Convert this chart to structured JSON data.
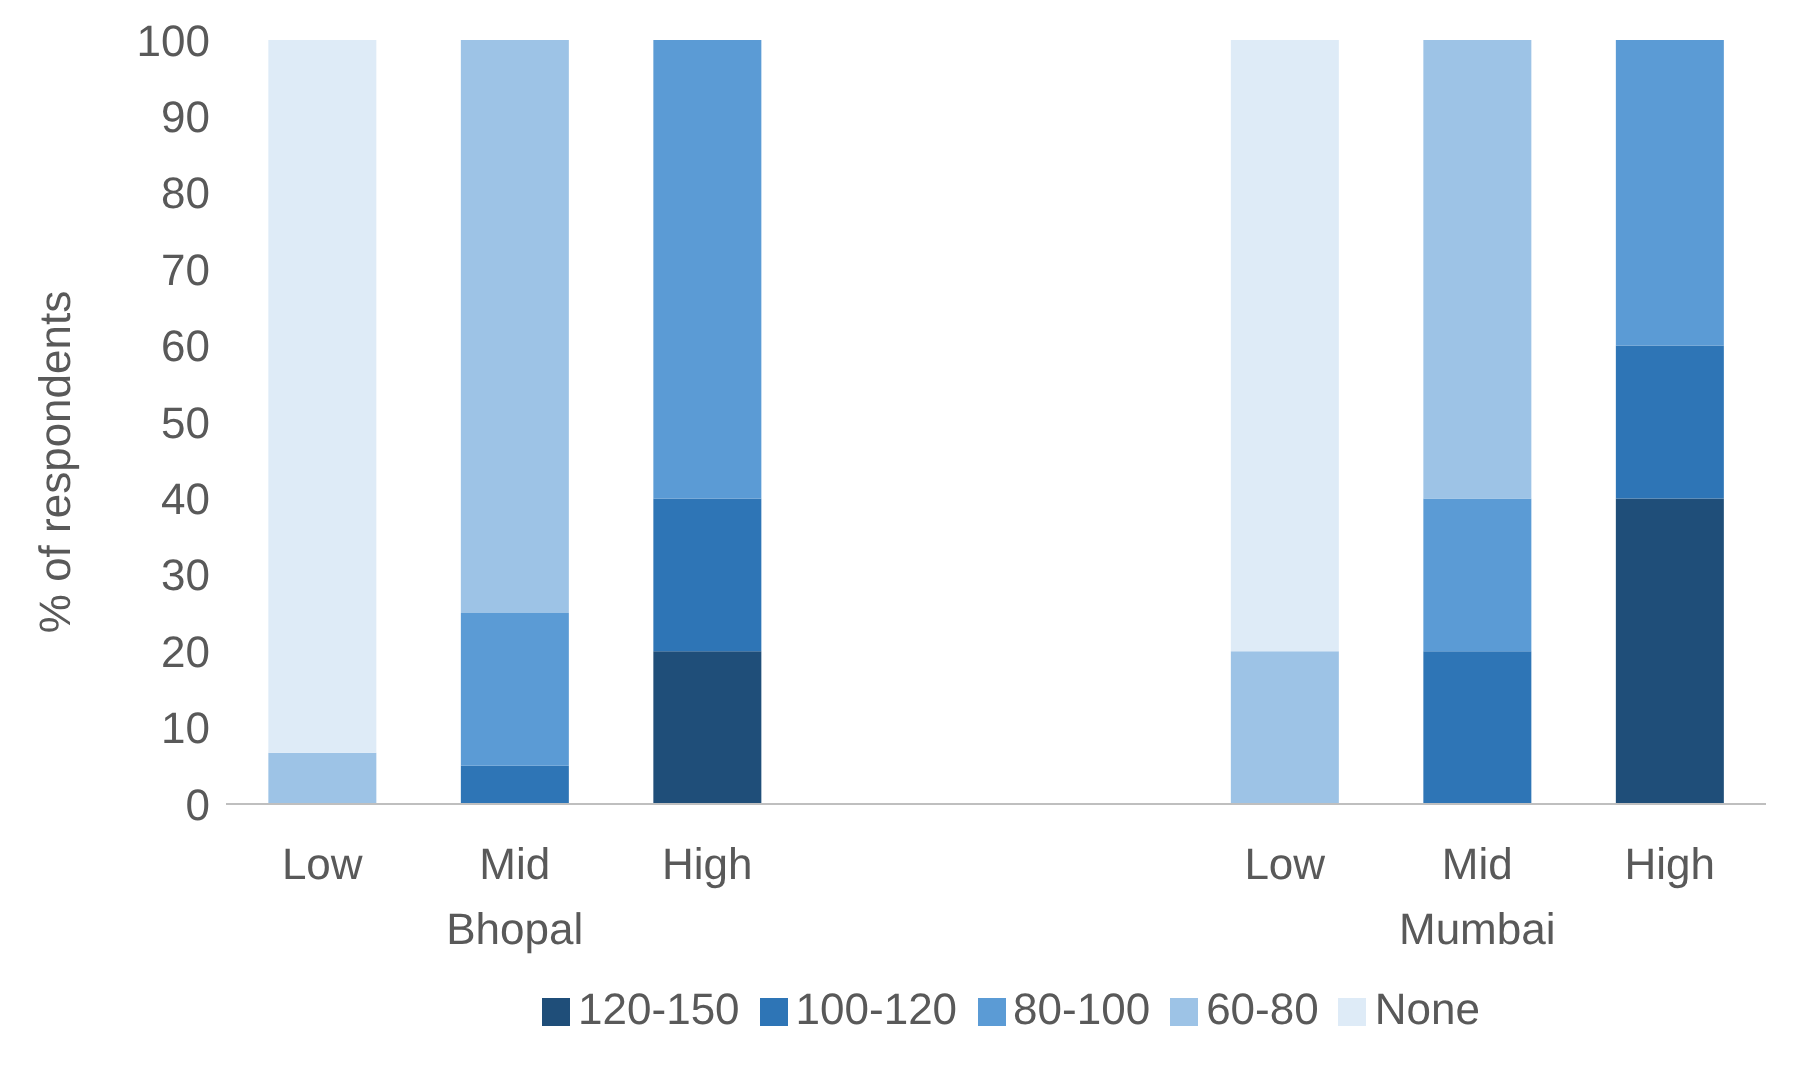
{
  "chart_data": {
    "type": "bar",
    "stacked": true,
    "ylabel": "% of respondents",
    "categories": [
      "Low",
      "Mid",
      "High",
      null,
      null,
      "Low",
      "Mid",
      "High"
    ],
    "series": [
      {
        "name": "120-150",
        "color": "#1f4e79",
        "values": [
          0,
          0,
          20,
          null,
          null,
          0,
          0,
          40
        ]
      },
      {
        "name": "100-120",
        "color": "#2e75b6",
        "values": [
          0,
          5,
          20,
          null,
          null,
          0,
          20,
          20
        ]
      },
      {
        "name": "80-100",
        "color": "#5b9bd5",
        "values": [
          0,
          20,
          60,
          null,
          null,
          0,
          20,
          40
        ]
      },
      {
        "name": "60-80",
        "color": "#9dc3e6",
        "values": [
          6.7,
          75,
          0,
          null,
          null,
          20,
          60,
          0
        ]
      },
      {
        "name": "None",
        "color": "#deebf7",
        "values": [
          93.3,
          0,
          0,
          null,
          null,
          80,
          0,
          0
        ]
      }
    ],
    "ylim": [
      0,
      100
    ],
    "yticks": [
      0,
      10,
      20,
      30,
      40,
      50,
      60,
      70,
      80,
      90,
      100
    ],
    "annotations": [
      "Bhopal",
      "Mumbai"
    ],
    "grid": false,
    "legend": "bottom"
  }
}
